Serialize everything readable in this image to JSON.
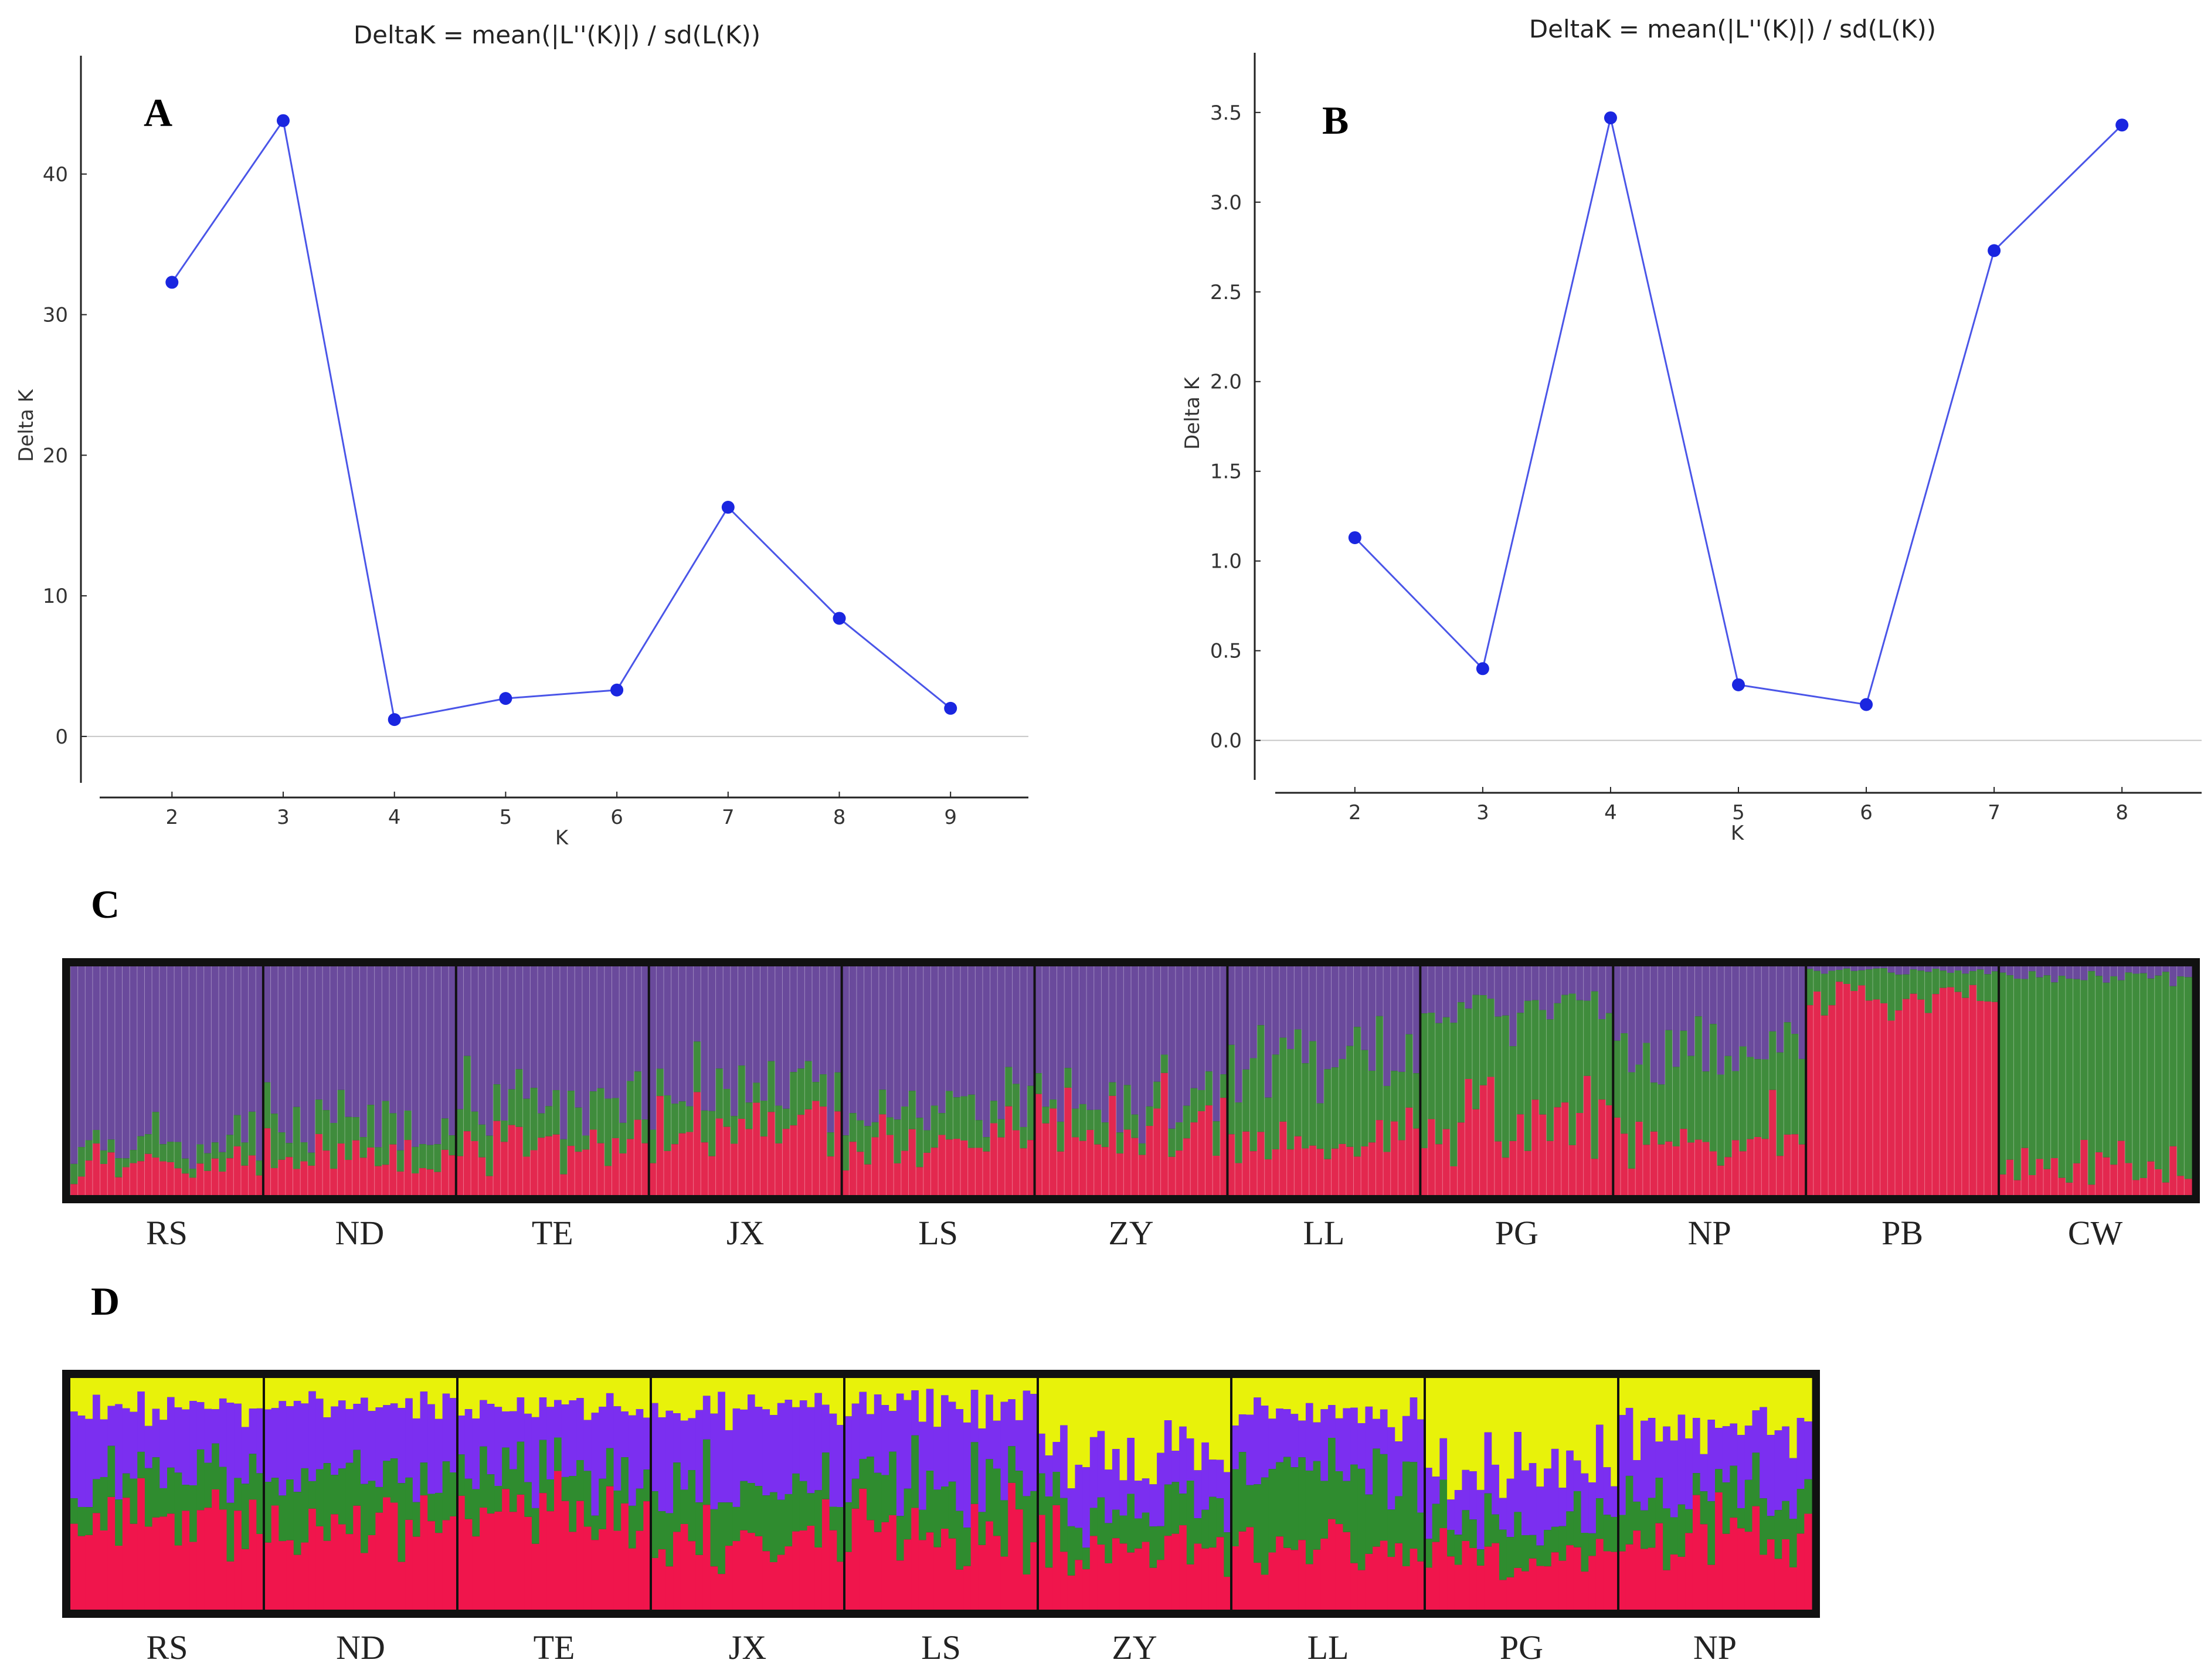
{
  "panels": {
    "A": "A",
    "B": "B",
    "C": "C",
    "D": "D"
  },
  "colors": {
    "line": "#4a55e8",
    "marker": "#1a26e0",
    "purple": "#6a4a9c",
    "green": "#3f8c3c",
    "red": "#e3284f",
    "yellow": "#e8f20a",
    "violet": "#7b2ff0",
    "green2": "#2f8c2f",
    "red2": "#f0154c"
  },
  "chart_data": [
    {
      "id": "A",
      "type": "line",
      "title": "DeltaK = mean(|L''(K)|) / sd(L(K))",
      "xlabel": "K",
      "ylabel": "Delta K",
      "x": [
        2,
        3,
        4,
        5,
        6,
        7,
        8,
        9
      ],
      "y": [
        32.3,
        43.8,
        1.2,
        2.7,
        3.3,
        16.3,
        8.4,
        2.0
      ],
      "xlim": [
        1.35,
        9.7
      ],
      "ylim": [
        -3.3,
        48
      ],
      "xticks": [
        "2",
        "3",
        "4",
        "5",
        "6",
        "7",
        "8",
        "9"
      ],
      "yticks": [
        "0",
        "10",
        "20",
        "30",
        "40"
      ],
      "grid": false
    },
    {
      "id": "B",
      "type": "line",
      "title": "DeltaK = mean(|L''(K)|) / sd(L(K))",
      "xlabel": "K",
      "ylabel": "Delta K",
      "x": [
        2,
        3,
        4,
        5,
        6,
        7,
        8
      ],
      "y": [
        1.13,
        0.4,
        3.47,
        0.31,
        0.2,
        2.73,
        3.43
      ],
      "xlim": [
        1.4,
        8.6
      ],
      "ylim": [
        -0.22,
        3.8
      ],
      "xticks": [
        "2",
        "3",
        "4",
        "5",
        "6",
        "7",
        "8"
      ],
      "yticks": [
        "0.0",
        "0.5",
        "1.0",
        "1.5",
        "2.0",
        "2.5",
        "3.0",
        "3.5"
      ],
      "grid": false
    },
    {
      "id": "C",
      "type": "bar",
      "title": "",
      "description_type": "stacked-structure",
      "k": 3,
      "series_names": [
        "purple",
        "green",
        "red"
      ],
      "categories": [
        "RS",
        "ND",
        "TE",
        "JX",
        "LS",
        "ZY",
        "LL",
        "PG",
        "NP",
        "PB",
        "CW"
      ],
      "mean_proportions": [
        {
          "purple": 0.8,
          "green": 0.08,
          "red": 0.12
        },
        {
          "purple": 0.72,
          "green": 0.12,
          "red": 0.16
        },
        {
          "purple": 0.62,
          "green": 0.17,
          "red": 0.21
        },
        {
          "purple": 0.55,
          "green": 0.17,
          "red": 0.28
        },
        {
          "purple": 0.63,
          "green": 0.14,
          "red": 0.23
        },
        {
          "purple": 0.58,
          "green": 0.1,
          "red": 0.32
        },
        {
          "purple": 0.4,
          "green": 0.38,
          "red": 0.22
        },
        {
          "purple": 0.2,
          "green": 0.5,
          "red": 0.3
        },
        {
          "purple": 0.38,
          "green": 0.38,
          "red": 0.24
        },
        {
          "purple": 0.02,
          "green": 0.13,
          "red": 0.85
        },
        {
          "purple": 0.04,
          "green": 0.84,
          "red": 0.12
        }
      ]
    },
    {
      "id": "D",
      "type": "bar",
      "title": "",
      "description_type": "stacked-structure",
      "k": 4,
      "series_names": [
        "yellow",
        "violet",
        "green",
        "red"
      ],
      "categories": [
        "RS",
        "ND",
        "TE",
        "JX",
        "LS",
        "ZY",
        "LL",
        "PG",
        "NP"
      ],
      "mean_proportions": [
        {
          "yellow": 0.12,
          "violet": 0.28,
          "green": 0.2,
          "red": 0.4
        },
        {
          "yellow": 0.12,
          "violet": 0.3,
          "green": 0.22,
          "red": 0.36
        },
        {
          "yellow": 0.14,
          "violet": 0.3,
          "green": 0.18,
          "red": 0.38
        },
        {
          "yellow": 0.13,
          "violet": 0.35,
          "green": 0.22,
          "red": 0.3
        },
        {
          "yellow": 0.12,
          "violet": 0.33,
          "green": 0.23,
          "red": 0.32
        },
        {
          "yellow": 0.35,
          "violet": 0.22,
          "green": 0.18,
          "red": 0.25
        },
        {
          "yellow": 0.14,
          "violet": 0.26,
          "green": 0.35,
          "red": 0.25
        },
        {
          "yellow": 0.38,
          "violet": 0.25,
          "green": 0.15,
          "red": 0.22
        },
        {
          "yellow": 0.22,
          "violet": 0.3,
          "green": 0.18,
          "red": 0.3
        }
      ]
    }
  ]
}
